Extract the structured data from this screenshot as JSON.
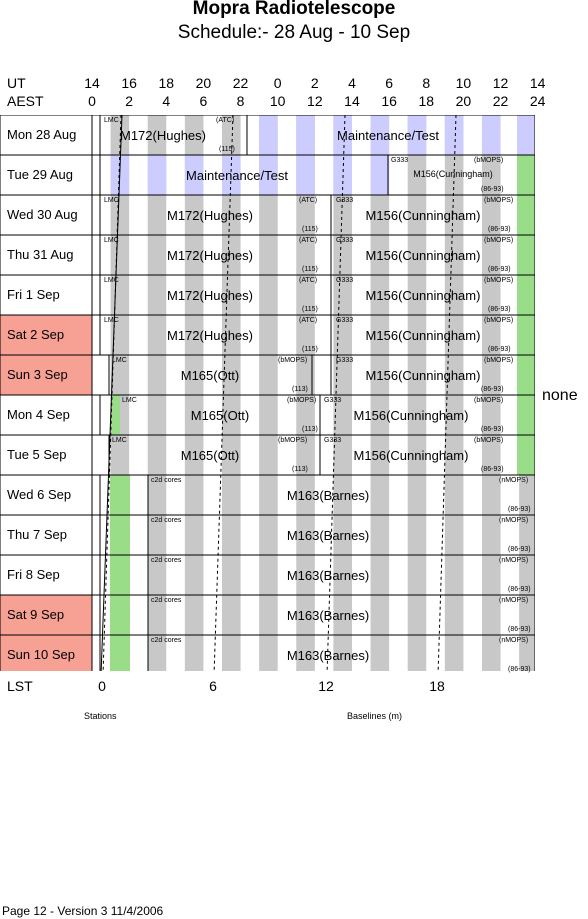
{
  "title": "Mopra Radiotelescope",
  "subtitle": "Schedule:- 28 Aug - 10 Sep",
  "axes": {
    "ut_label": "UT",
    "aest_label": "AEST",
    "lst_label": "LST",
    "ut_ticks": [
      "14",
      "16",
      "18",
      "20",
      "22",
      "0",
      "2",
      "4",
      "6",
      "8",
      "10",
      "12",
      "14"
    ],
    "aest_ticks": [
      "0",
      "2",
      "4",
      "6",
      "8",
      "10",
      "12",
      "14",
      "16",
      "18",
      "20",
      "22",
      "24"
    ],
    "lst_ticks": [
      "0",
      "6",
      "12",
      "18"
    ]
  },
  "days": [
    {
      "label": "Mon  28 Aug",
      "weekend": false
    },
    {
      "label": "Tue  29 Aug",
      "weekend": false
    },
    {
      "label": "Wed 30 Aug",
      "weekend": false
    },
    {
      "label": "Thu  31 Aug",
      "weekend": false
    },
    {
      "label": "Fri     1  Sep",
      "weekend": false
    },
    {
      "label": "Sat    2  Sep",
      "weekend": true
    },
    {
      "label": "Sun    3  Sep",
      "weekend": true
    },
    {
      "label": "Mon   4  Sep",
      "weekend": false
    },
    {
      "label": "Tue    5  Sep",
      "weekend": false
    },
    {
      "label": "Wed   6  Sep",
      "weekend": false
    },
    {
      "label": "Thu    7  Sep",
      "weekend": false
    },
    {
      "label": "Fri     8  Sep",
      "weekend": false
    },
    {
      "label": "Sat    9  Sep",
      "weekend": true
    },
    {
      "label": "Sun  10  Sep",
      "weekend": true
    }
  ],
  "blocks": {
    "maint1": "Maintenance/Test",
    "maint2": "Maintenance/Test",
    "m172": "M172(Hughes)",
    "m156": "M156(Cunningham)",
    "m165": "M165(Ott)",
    "m163": "M163(Barnes)",
    "lmc": "LMC",
    "atc": "(ATC)",
    "b115": "(115)",
    "g333": "G333",
    "bmops": "(bMOPS)",
    "b8693": "(86-93)",
    "b113": "(113)",
    "c2d": "c2d cores",
    "nmops": "(nMOPS)"
  },
  "side_note": "none",
  "legend": {
    "stations": "Stations",
    "baselines": "Baselines (m)"
  },
  "footer": "Page 12 - Version 3  11/4/2006",
  "colors": {
    "weekend": "#f7a195",
    "grey_band": "#c8c8c8",
    "blue_band": "#ccccff",
    "green": "#99dd88"
  }
}
